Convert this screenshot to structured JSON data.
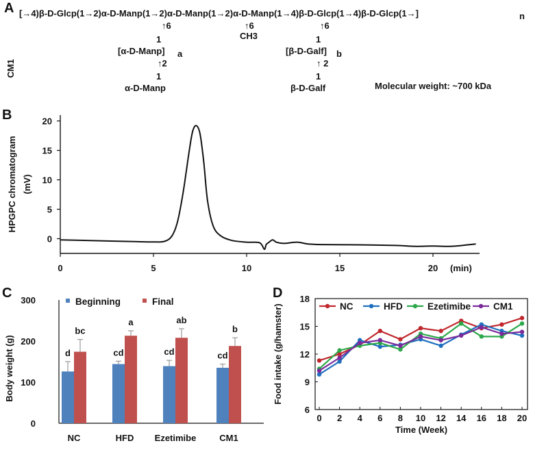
{
  "panels": {
    "A": {
      "label": "A",
      "side_label": "CM1",
      "backbone": "[→4)β-D-Glcp(1→2)α-D-Manp(1→2)α-D-Manp(1→2)α-D-Manp(1→4)β-D-Glcp(1→4)β-D-Glcp(1→]",
      "backbone_sub": "n",
      "branch1": {
        "arrow": "↑6",
        "link": "1",
        "unit": "[α-D-Manp]",
        "sub": "a",
        "arrow2": "↑2",
        "link2": "1",
        "unit2": "α-D-Manp"
      },
      "branch2": {
        "arrow": "↑6",
        "unit": "CH3"
      },
      "branch3": {
        "arrow": "↑6",
        "link": "1",
        "unit": "[β-D-Galf]",
        "sub": "b",
        "arrow2": "↑ 2",
        "link2": "1",
        "unit2": "β-D-Galf"
      },
      "mw": "Molecular weight: ~700 kDa"
    },
    "B": {
      "label": "B"
    },
    "C": {
      "label": "C"
    },
    "D": {
      "label": "D"
    }
  },
  "chart_data": [
    {
      "type": "line",
      "panel": "B",
      "ylabel": "HPGPC chromatogram\n(mV)",
      "xlabel": "(min)",
      "xlim": [
        0,
        22.5
      ],
      "ylim": [
        -2.5,
        21
      ],
      "xticks": [
        0,
        5,
        10,
        15,
        20
      ],
      "yticks": [
        0,
        5,
        10,
        15,
        20
      ],
      "x": [
        0,
        2,
        4,
        5,
        5.6,
        6.0,
        6.3,
        6.6,
        6.9,
        7.1,
        7.3,
        7.5,
        7.7,
        7.9,
        8.2,
        8.6,
        9.2,
        10,
        10.7,
        10.95,
        11.05,
        11.2,
        11.4,
        11.6,
        12,
        12.7,
        13.3,
        14,
        16,
        18,
        19,
        20,
        21,
        22.3
      ],
      "y": [
        -0.2,
        -0.35,
        -0.5,
        -0.55,
        -0.45,
        0.5,
        3,
        8,
        14.5,
        18.2,
        19.2,
        17.8,
        13,
        6.5,
        2.2,
        0.5,
        -0.3,
        -0.6,
        -0.7,
        -1.8,
        -1.0,
        -0.6,
        -0.2,
        -0.6,
        -0.8,
        -0.6,
        -0.9,
        -1.0,
        -1.05,
        -1.15,
        -1.3,
        -1.25,
        -1.3,
        -0.9
      ]
    },
    {
      "type": "bar",
      "panel": "C",
      "ylabel": "Body weight (g)",
      "ylim": [
        0,
        300
      ],
      "yticks": [
        0,
        100,
        200,
        300
      ],
      "categories": [
        "NC",
        "HFD",
        "Ezetimibe",
        "CM1"
      ],
      "series": [
        {
          "name": "Beginning",
          "color": "#4f81bd",
          "values": [
            126,
            144,
            139,
            135
          ],
          "errors": [
            24,
            7,
            14,
            9
          ],
          "labels": [
            "d",
            "cd",
            "cd",
            "cd"
          ]
        },
        {
          "name": "Final",
          "color": "#c0504d",
          "values": [
            174,
            213,
            208,
            188
          ],
          "errors": [
            30,
            12,
            22,
            20
          ],
          "labels": [
            "bc",
            "a",
            "ab",
            "b"
          ]
        }
      ]
    },
    {
      "type": "line",
      "panel": "D",
      "xlabel": "Time (Week)",
      "ylabel": "Food intake (g/hamster)",
      "ylim": [
        6,
        18
      ],
      "yticks": [
        6,
        9,
        12,
        15,
        18
      ],
      "x": [
        0,
        2,
        4,
        6,
        8,
        10,
        12,
        14,
        16,
        18,
        20
      ],
      "series": [
        {
          "name": "NC",
          "color": "#c0272d",
          "values": [
            11.3,
            12.0,
            13.0,
            14.5,
            13.6,
            14.8,
            14.5,
            15.6,
            14.8,
            15.2,
            15.9
          ]
        },
        {
          "name": "HFD",
          "color": "#1f6fbf",
          "values": [
            9.8,
            11.2,
            13.5,
            12.8,
            13.0,
            13.6,
            12.9,
            14.1,
            15.2,
            14.5,
            14.0
          ]
        },
        {
          "name": "Ezetimibe",
          "color": "#2ca84a",
          "values": [
            10.4,
            12.4,
            12.9,
            13.2,
            12.5,
            14.2,
            13.7,
            15.3,
            13.9,
            13.9,
            15.3
          ]
        },
        {
          "name": "CM1",
          "color": "#7a2a9a",
          "values": [
            10.2,
            11.6,
            13.2,
            13.5,
            12.9,
            13.9,
            13.5,
            14.0,
            14.9,
            14.2,
            14.4
          ]
        }
      ]
    }
  ]
}
